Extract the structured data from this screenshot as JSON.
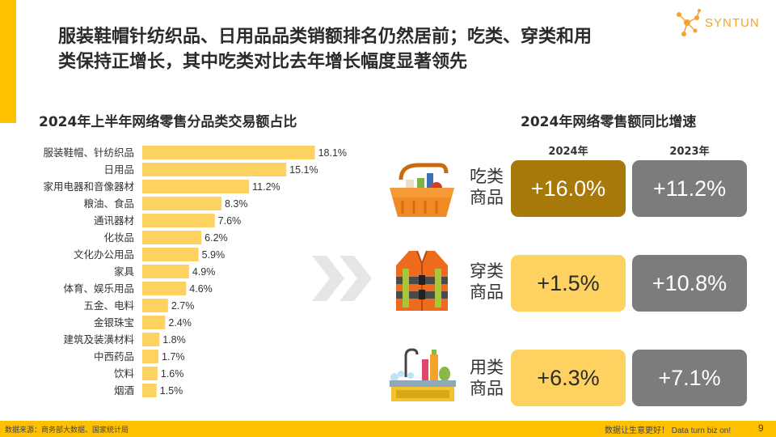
{
  "header": {
    "title_line1": "服装鞋帽针纺织品、日用品品类销额排名仍然居前；吃类、穿类和用",
    "title_line2": "类保持正增长，其中吃类对比去年增长幅度显著领先",
    "logo_text": "SYNTUN"
  },
  "colors": {
    "accent": "#FFC000",
    "bar": "#FDD260",
    "dark_box": "#A7780A",
    "grey_box": "#7C7C7C"
  },
  "chart_data": [
    {
      "type": "bar",
      "orientation": "horizontal",
      "title": "2024年上半年网络零售分品类交易额占比",
      "categories": [
        "服装鞋帽、针纺织品",
        "日用品",
        "家用电器和音像器材",
        "粮油、食品",
        "通讯器材",
        "化妆品",
        "文化办公用品",
        "家具",
        "体育、娱乐用品",
        "五金、电料",
        "金银珠宝",
        "建筑及装潢材料",
        "中西药品",
        "饮料",
        "烟酒"
      ],
      "values": [
        18.1,
        15.1,
        11.2,
        8.3,
        7.6,
        6.2,
        5.9,
        4.9,
        4.6,
        2.7,
        2.4,
        1.8,
        1.7,
        1.6,
        1.5
      ],
      "value_labels": [
        "18.1%",
        "15.1%",
        "11.2%",
        "8.3%",
        "7.6%",
        "6.2%",
        "5.9%",
        "4.9%",
        "4.6%",
        "2.7%",
        "2.4%",
        "1.8%",
        "1.7%",
        "1.6%",
        "1.5%"
      ],
      "xlim": [
        0,
        20
      ],
      "grid": false
    },
    {
      "type": "table",
      "title": "2024年网络零售额同比增速",
      "columns": [
        "2024年",
        "2023年"
      ],
      "rows": [
        {
          "label": "吃类商品",
          "label_line1": "吃类",
          "label_line2": "商品",
          "values": [
            16.0,
            11.2
          ],
          "value_labels": [
            "+16.0%",
            "+11.2%"
          ]
        },
        {
          "label": "穿类商品",
          "label_line1": "穿类",
          "label_line2": "商品",
          "values": [
            1.5,
            10.8
          ],
          "value_labels": [
            "+1.5%",
            "+10.8%"
          ]
        },
        {
          "label": "用类商品",
          "label_line1": "用类",
          "label_line2": "商品",
          "values": [
            6.3,
            7.1
          ],
          "value_labels": [
            "+6.3%",
            "+7.1%"
          ]
        }
      ]
    }
  ],
  "icons": [
    "basket-icon",
    "life-vest-icon",
    "cleaning-supplies-icon",
    "chevron-right-icon"
  ],
  "footer": {
    "source": "数据来源：商务部大数据、国家统计局",
    "slogan": "数据让生意更好！ Data turn biz on!",
    "page": "9"
  }
}
